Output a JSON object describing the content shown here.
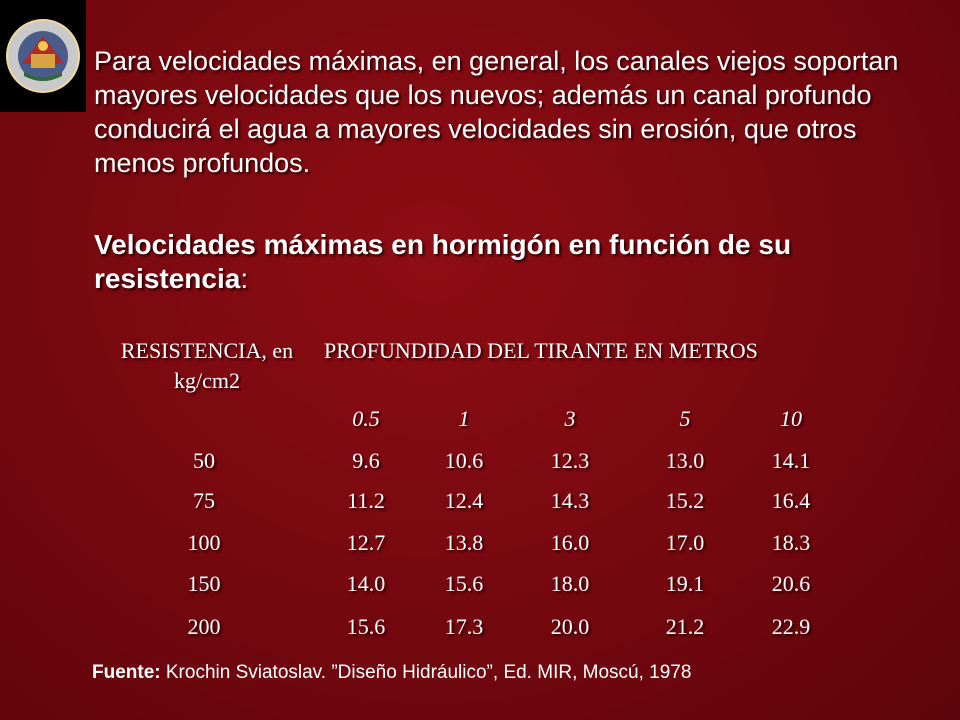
{
  "logo": {
    "icon": "university-seal-icon",
    "ring_text_top": "UNIVERSIDAD NACIONAL DEL SANTA",
    "ring_text_bottom": "CHIMBOTE • PERU"
  },
  "paragraph": "Para velocidades máximas, en general, los canales viejos soportan mayores velocidades que los nuevos; además un canal profundo conducirá el agua a mayores velocidades sin erosión, que otros menos profundos.",
  "heading": {
    "text": "Velocidades máximas en hormigón en función de su resistencia",
    "colon": ":"
  },
  "table": {
    "col_header_resistance": "RESISTENCIA, en kg/cm2",
    "col_header_depth": "PROFUNDIDAD DEL TIRANTE EN METROS",
    "depths": [
      "0.5",
      "1",
      "3",
      "5",
      "10"
    ],
    "rows": [
      {
        "resistance": "50",
        "values": [
          "9.6",
          "10.6",
          "12.3",
          "13.0",
          "14.1"
        ]
      },
      {
        "resistance": "75",
        "values": [
          "11.2",
          "12.4",
          "14.3",
          "15.2",
          "16.4"
        ]
      },
      {
        "resistance": "100",
        "values": [
          "12.7",
          "13.8",
          "16.0",
          "17.0",
          "18.3"
        ]
      },
      {
        "resistance": "150",
        "values": [
          "14.0",
          "15.6",
          "18.0",
          "19.1",
          "20.6"
        ]
      },
      {
        "resistance": "200",
        "values": [
          "15.6",
          "17.3",
          "20.0",
          "21.2",
          "22.9"
        ]
      }
    ]
  },
  "footer": {
    "label": "Fuente:",
    "text": " Krochin Sviatoslav. ”Diseño Hidráulico”, Ed. MIR, Moscú, 1978"
  }
}
